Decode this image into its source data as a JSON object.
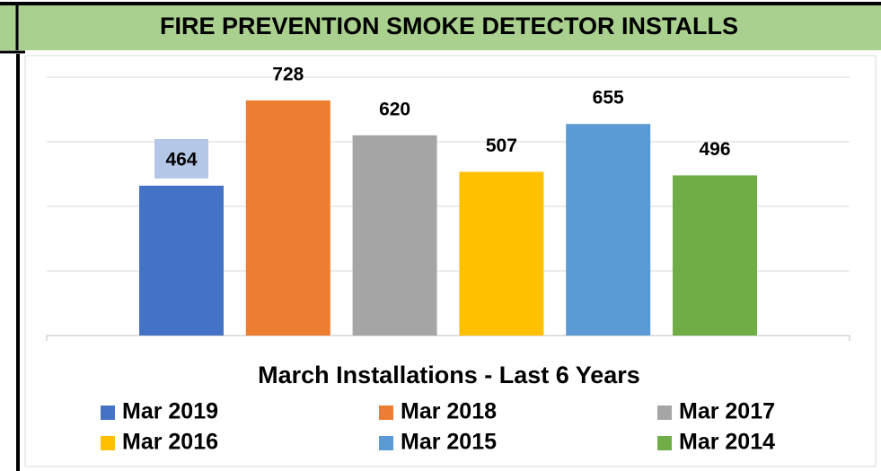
{
  "chart_data": {
    "type": "bar",
    "title": "FIRE PREVENTION SMOKE DETECTOR INSTALLS",
    "subtitle": "March Installations - Last 6 Years",
    "categories": [
      "Mar 2019",
      "Mar 2018",
      "Mar 2017",
      "Mar 2016",
      "Mar 2015",
      "Mar 2014"
    ],
    "values": [
      464,
      728,
      620,
      507,
      655,
      496
    ],
    "colors": [
      "#4472c4",
      "#ed7d31",
      "#a5a5a5",
      "#ffc000",
      "#5b9bd5",
      "#70ad47"
    ],
    "ylim": [
      0,
      800
    ],
    "yticks": [
      0,
      200,
      400,
      600,
      800
    ],
    "grid": true,
    "legend": "bottom"
  }
}
